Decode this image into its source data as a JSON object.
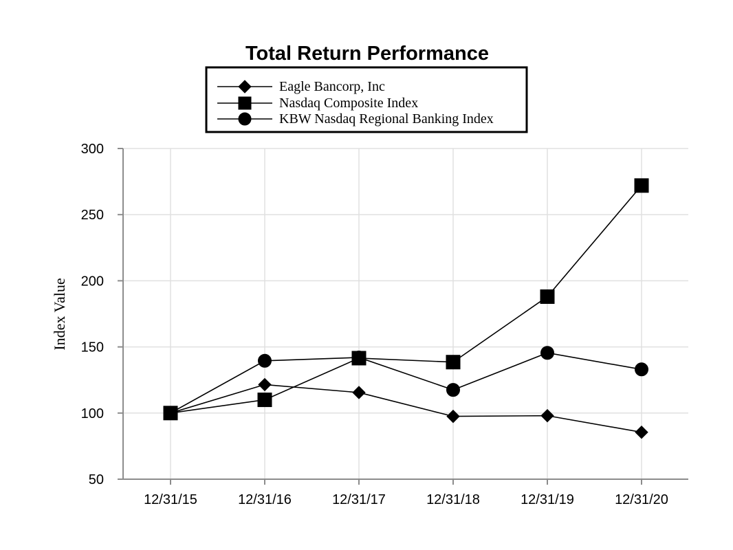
{
  "chart_data": {
    "type": "line",
    "title": "Total Return Performance",
    "xlabel": "",
    "ylabel": "Index Value",
    "categories": [
      "12/31/15",
      "12/31/16",
      "12/31/17",
      "12/31/18",
      "12/31/19",
      "12/31/20"
    ],
    "ylim": [
      50,
      300
    ],
    "yticks": [
      50,
      100,
      150,
      200,
      250,
      300
    ],
    "grid": true,
    "legend_position": "top-center",
    "series": [
      {
        "name": "Eagle Bancorp, Inc",
        "marker": "diamond",
        "values": [
          100,
          121.5,
          115.5,
          97.5,
          98,
          85.5
        ]
      },
      {
        "name": "Nasdaq Composite Index",
        "marker": "square",
        "values": [
          100,
          110,
          141.5,
          138.5,
          188,
          272
        ]
      },
      {
        "name": "KBW Nasdaq Regional Banking Index",
        "marker": "circle",
        "values": [
          100,
          139.5,
          142,
          117.5,
          145.5,
          133
        ]
      }
    ]
  }
}
